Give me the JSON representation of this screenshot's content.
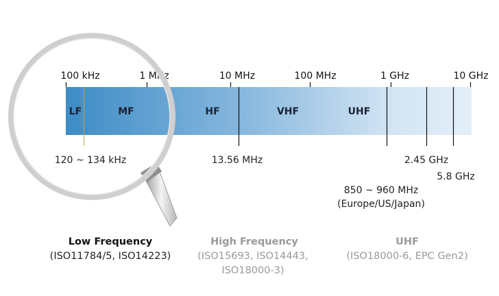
{
  "scale_ticks": [
    "100 kHz",
    "1 MHz",
    "10 MHz",
    "100 MHz",
    "1 GHz",
    "10 GHz"
  ],
  "bands": [
    "LF",
    "MF",
    "HF",
    "VHF",
    "UHF"
  ],
  "annotations": {
    "lf_range": "120 ~ 134 kHz",
    "hf_freq": "13.56 MHz",
    "uhf_range": "850 ~ 960 MHz",
    "uhf_region": "(Europe/US/Japan)",
    "microwave_1": "2.45 GHz",
    "microwave_2": "5.8 GHz"
  },
  "categories": [
    {
      "title": "Low Frequency",
      "standards": [
        "(ISO11784/5, ISO14223)"
      ]
    },
    {
      "title": "High Frequency",
      "standards": [
        "(ISO15693, ISO14443,",
        "ISO18000-3)"
      ]
    },
    {
      "title": "UHF",
      "standards": [
        "(ISO18000-6, EPC Gen2)"
      ]
    }
  ],
  "colors": {
    "bar_start": "#3d8cc6",
    "bar_end": "#e2eef9",
    "lf_marker": "#c9a24a",
    "low_frequency_text": "#111111",
    "other_category_text": "#999999"
  }
}
